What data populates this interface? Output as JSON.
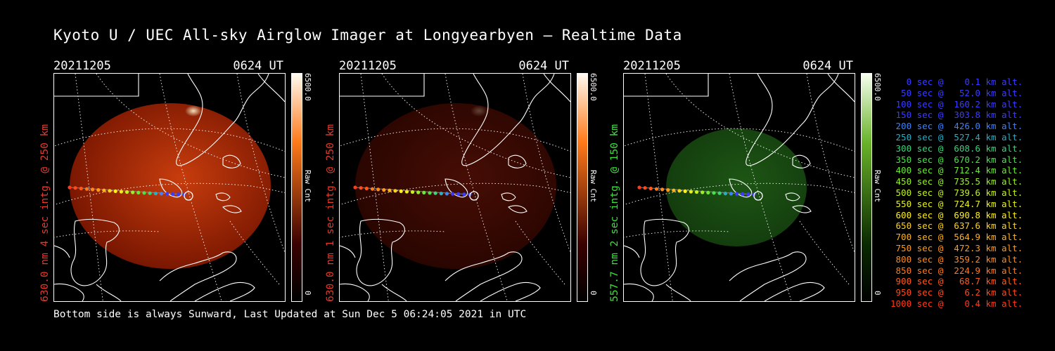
{
  "title": "Kyoto U / UEC All-sky Airglow Imager at Longyearbyen — Realtime Data",
  "footer": "Bottom side is always Sunward, Last Updated at Sun Dec  5 06:24:05 2021 in UTC",
  "panels": [
    {
      "date": "20211205",
      "time": "0624 UT",
      "ylabel": "630.0 nm 4 sec intg. @ 250 km",
      "label_color": "#e83a2a",
      "cbar_max": "6500.0",
      "cbar_min": "0",
      "cbar_label": "Raw Cnt",
      "cbar_top": "#fffaf0",
      "cbar_mid": "#ff7a1a",
      "cbar_bot": "#3a0000",
      "fill_center": "#d2400e",
      "fill_edge": "#7a1500",
      "fill_opacity": 0.95
    },
    {
      "date": "20211205",
      "time": "0624 UT",
      "ylabel": "630.0 nm 1 sec intg. @ 250 km",
      "label_color": "#e83a2a",
      "cbar_max": "6500.0",
      "cbar_min": "0",
      "cbar_label": "Raw Cnt",
      "cbar_top": "#fffaf0",
      "cbar_mid": "#ff7a1a",
      "cbar_bot": "#3a0000",
      "fill_center": "#4a0e05",
      "fill_edge": "#2a0500",
      "fill_opacity": 0.95
    },
    {
      "date": "20211205",
      "time": "0624 UT",
      "ylabel": "557.7 nm 2 sec intg. @ 150 km",
      "label_color": "#3ce23c",
      "cbar_max": "6500.0",
      "cbar_min": "0",
      "cbar_label": "Raw Cnt",
      "cbar_top": "#f6fff0",
      "cbar_mid": "#6ab32a",
      "cbar_bot": "#0a2a00",
      "fill_center": "#1f5a16",
      "fill_edge": "#143e0e",
      "fill_opacity": 0.95
    }
  ],
  "legend": [
    {
      "text": "   0 sec @    0.1 km alt.",
      "color": "#3b3bff"
    },
    {
      "text": "  50 sec @   52.0 km alt.",
      "color": "#3b3bff"
    },
    {
      "text": " 100 sec @  160.2 km alt.",
      "color": "#3b3bff"
    },
    {
      "text": " 150 sec @  303.8 km alt.",
      "color": "#3b3bff"
    },
    {
      "text": " 200 sec @  426.0 km alt.",
      "color": "#3b82ff"
    },
    {
      "text": " 250 sec @  527.4 km alt.",
      "color": "#22b0c8"
    },
    {
      "text": " 300 sec @  608.6 km alt.",
      "color": "#36d67a"
    },
    {
      "text": " 350 sec @  670.2 km alt.",
      "color": "#4be04b"
    },
    {
      "text": " 400 sec @  712.4 km alt.",
      "color": "#6ee836"
    },
    {
      "text": " 450 sec @  735.5 km alt.",
      "color": "#9aef2a"
    },
    {
      "text": " 500 sec @  739.6 km alt.",
      "color": "#c4f21e"
    },
    {
      "text": " 550 sec @  724.7 km alt.",
      "color": "#e8f21a"
    },
    {
      "text": " 600 sec @  690.8 km alt.",
      "color": "#ffef1a"
    },
    {
      "text": " 650 sec @  637.6 km alt.",
      "color": "#ffd21a"
    },
    {
      "text": " 700 sec @  564.9 km alt.",
      "color": "#ffb31a"
    },
    {
      "text": " 750 sec @  472.3 km alt.",
      "color": "#ff9a1a"
    },
    {
      "text": " 800 sec @  359.2 km alt.",
      "color": "#ff8a1a"
    },
    {
      "text": " 850 sec @  224.9 km alt.",
      "color": "#ff7a1a"
    },
    {
      "text": " 900 sec @   68.7 km alt.",
      "color": "#ff5a1a"
    },
    {
      "text": " 950 sec @    6.2 km alt.",
      "color": "#ff4a1a"
    },
    {
      "text": "1000 sec @    0.4 km alt.",
      "color": "#ff3a1a"
    }
  ]
}
